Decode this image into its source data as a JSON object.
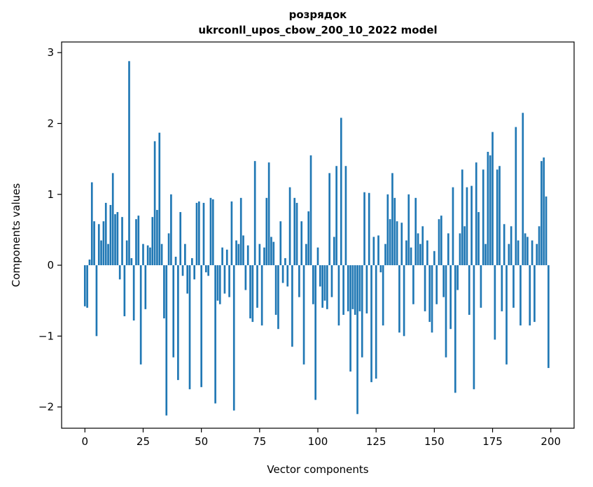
{
  "title": {
    "line1": "розрядок",
    "line2": "ukrconll_upos_cbow_200_10_2022 model"
  },
  "axes": {
    "xlabel": "Vector components",
    "ylabel": "Components values"
  },
  "chart_data": {
    "type": "bar",
    "title": "розрядок\nukrconll_upos_cbow_200_10_2022 model",
    "xlabel": "Vector components",
    "ylabel": "Components values",
    "bar_color": "#1f77b4",
    "xticks": [
      0,
      25,
      50,
      75,
      100,
      125,
      150,
      175,
      200
    ],
    "yticks": [
      -2,
      -1,
      0,
      1,
      2,
      3
    ],
    "xlim": [
      -10,
      210
    ],
    "ylim": [
      -2.3,
      3.15
    ],
    "grid": false,
    "legend": null,
    "x_start": 0,
    "values": [
      -0.58,
      -0.6,
      0.08,
      1.17,
      0.62,
      -1.0,
      0.58,
      0.35,
      0.62,
      0.88,
      0.3,
      0.85,
      1.3,
      0.72,
      0.75,
      -0.2,
      0.68,
      -0.72,
      0.35,
      2.88,
      0.1,
      -0.78,
      0.65,
      0.7,
      -1.4,
      0.3,
      -0.62,
      0.28,
      0.25,
      0.68,
      1.75,
      0.78,
      1.87,
      0.3,
      -0.75,
      -2.12,
      0.45,
      1.0,
      -1.3,
      0.12,
      -1.62,
      0.75,
      -0.15,
      0.3,
      -0.4,
      -1.75,
      0.1,
      -0.2,
      0.88,
      0.9,
      -1.72,
      0.88,
      -0.1,
      -0.15,
      0.95,
      0.93,
      -1.95,
      -0.5,
      -0.55,
      0.25,
      -0.4,
      0.22,
      -0.45,
      0.9,
      -2.05,
      0.35,
      0.3,
      0.95,
      0.42,
      -0.35,
      0.28,
      -0.75,
      -0.8,
      1.47,
      -0.6,
      0.3,
      -0.85,
      0.25,
      0.95,
      1.45,
      0.4,
      0.33,
      -0.7,
      -0.9,
      0.62,
      -0.25,
      0.1,
      -0.3,
      1.1,
      -1.15,
      0.95,
      0.88,
      -0.45,
      0.62,
      -1.4,
      0.3,
      0.76,
      1.55,
      -0.55,
      -1.9,
      0.25,
      -0.3,
      -0.6,
      -0.5,
      -0.62,
      1.3,
      -0.45,
      0.4,
      1.4,
      -0.85,
      2.08,
      -0.7,
      1.4,
      -0.65,
      -1.5,
      -0.62,
      -0.7,
      -2.1,
      -0.65,
      -1.3,
      1.03,
      -0.68,
      1.02,
      -1.65,
      0.4,
      -1.6,
      0.42,
      -0.1,
      -0.85,
      0.3,
      1.0,
      0.65,
      1.3,
      0.95,
      0.62,
      -0.95,
      0.6,
      -1.0,
      0.35,
      1.0,
      0.25,
      -0.55,
      0.95,
      0.45,
      0.3,
      0.55,
      -0.65,
      0.35,
      -0.8,
      -0.95,
      0.2,
      -0.55,
      0.65,
      0.7,
      -0.45,
      -1.3,
      0.45,
      -0.9,
      1.1,
      -1.8,
      -0.35,
      0.45,
      1.35,
      0.55,
      1.1,
      -0.7,
      1.12,
      -1.75,
      1.45,
      0.75,
      -0.6,
      1.35,
      0.3,
      1.6,
      1.55,
      1.88,
      -1.05,
      1.35,
      1.4,
      -0.65,
      0.58,
      -1.4,
      0.3,
      0.55,
      -0.6,
      1.95,
      0.35,
      -0.85,
      2.15,
      0.45,
      0.4,
      -0.85,
      0.35,
      -0.8,
      0.3,
      0.55,
      1.47,
      1.52,
      0.97,
      -1.45
    ]
  }
}
